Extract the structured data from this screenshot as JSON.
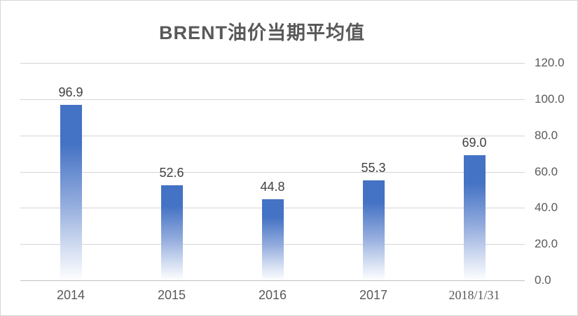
{
  "chart_data": {
    "type": "bar",
    "title": "BRENT油价当期平均值",
    "categories": [
      "2014",
      "2015",
      "2016",
      "2017",
      "2018/1/31"
    ],
    "values": [
      96.9,
      52.6,
      44.8,
      55.3,
      69.0
    ],
    "data_labels": [
      "96.9",
      "52.6",
      "44.8",
      "55.3",
      "69.0"
    ],
    "ylabel": "",
    "xlabel": "",
    "ylim": [
      0,
      120
    ],
    "ytick_step": 20,
    "yticks": [
      "120.0",
      "100.0",
      "80.0",
      "60.0",
      "40.0",
      "20.0",
      "0.0"
    ],
    "axis_side": "right",
    "grid": "horizontal",
    "legend_position": "none",
    "colors": {
      "bar_top": "#4472C4",
      "bar_bottom": "#FDFEFF",
      "gridline": "#D4D4D4",
      "baseline": "#C0C0C0",
      "title_text": "#595959",
      "tick_text": "#595959",
      "data_label_text": "#404040",
      "frame_border": "#D6D6D6",
      "background": "#FFFFFF"
    }
  }
}
